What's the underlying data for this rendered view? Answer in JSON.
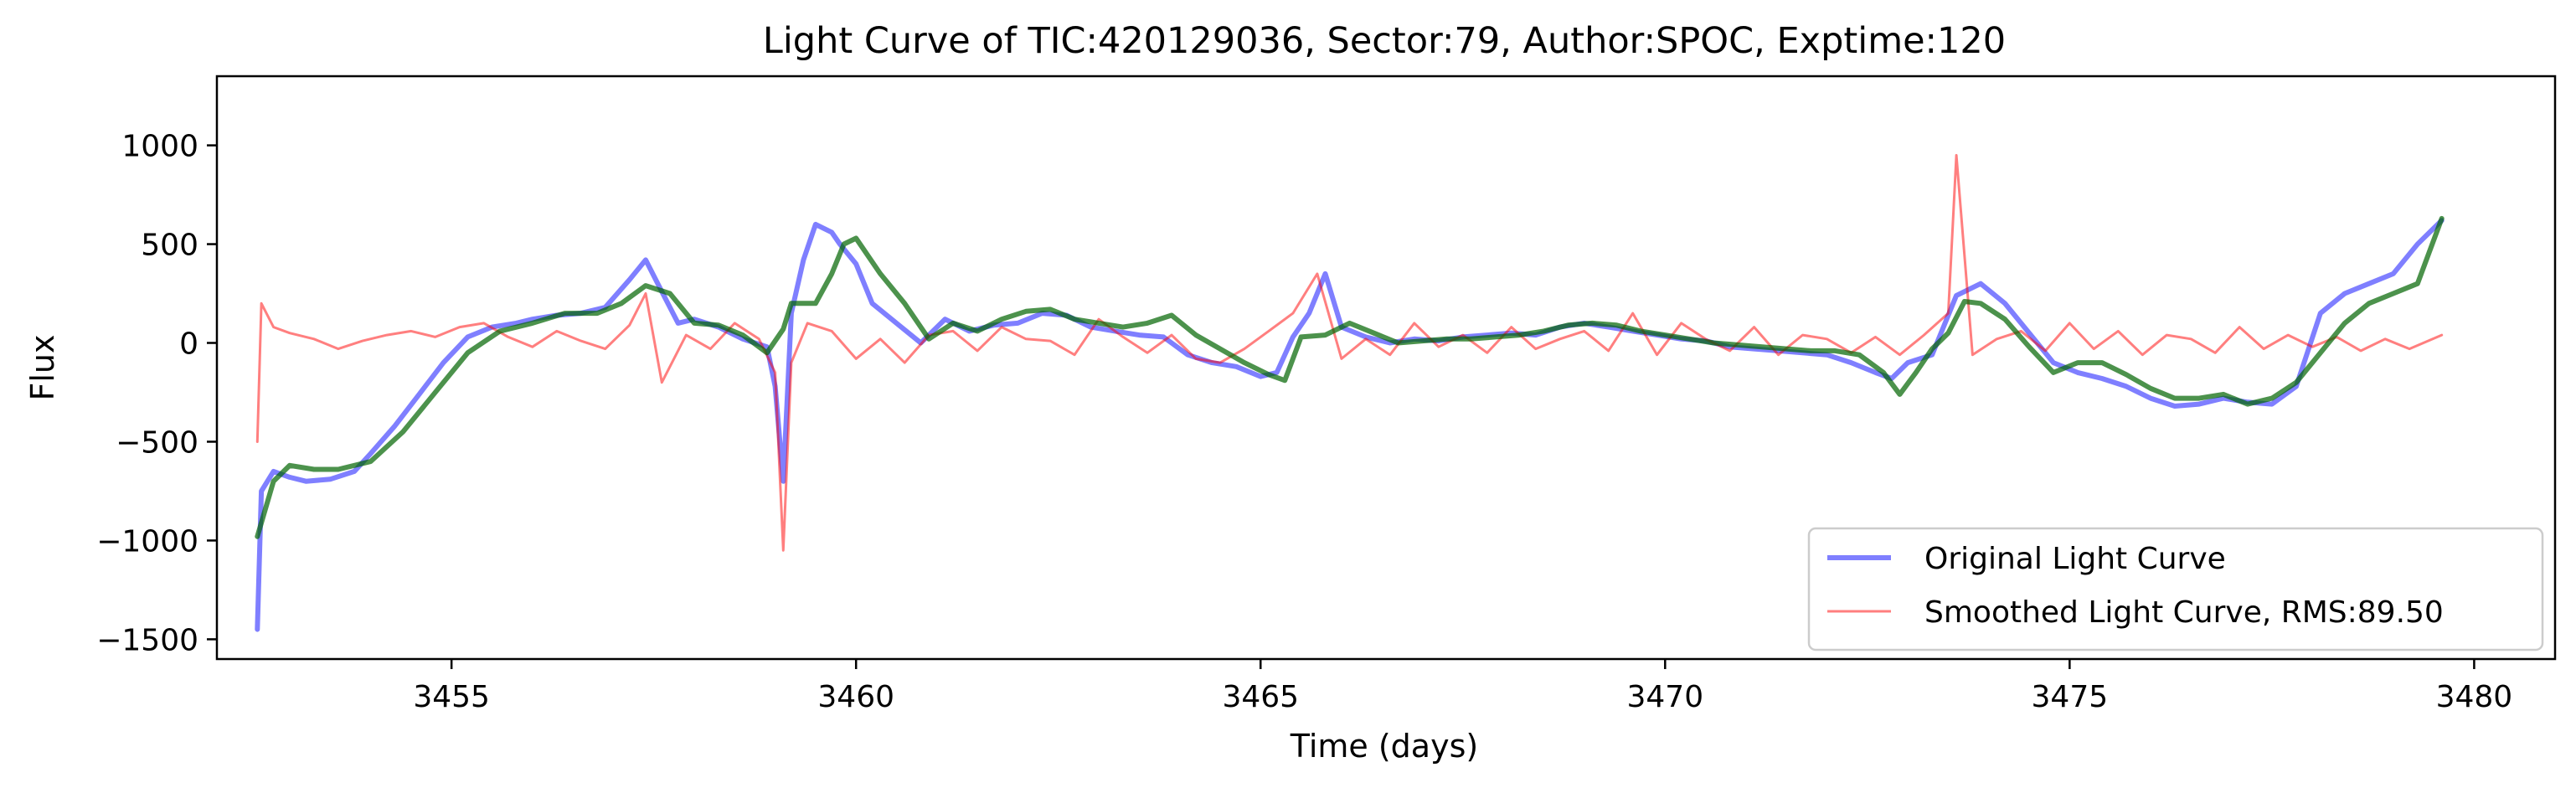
{
  "chart_data": {
    "type": "line",
    "title": "Light Curve of TIC:420129036, Sector:79, Author:SPOC, Exptime:120",
    "xlabel": "Time (days)",
    "ylabel": "Flux",
    "xlim": [
      3452.1,
      3481.0
    ],
    "ylim": [
      -1600,
      1350
    ],
    "xticks": [
      3455,
      3460,
      3465,
      3470,
      3475,
      3480
    ],
    "yticks": [
      1000,
      500,
      0,
      -500,
      -1000,
      -1500
    ],
    "xtick_labels": [
      "3455",
      "3460",
      "3465",
      "3470",
      "3475",
      "3480"
    ],
    "ytick_labels": [
      "1000",
      "500",
      "0",
      "−500",
      "−1000",
      "−1500"
    ],
    "grid": false,
    "legend_position": "lower-right",
    "series": [
      {
        "name": "Original Light Curve",
        "color": "#0000ff",
        "opacity": 0.5,
        "x": [
          3452.6,
          3452.65,
          3452.8,
          3453.0,
          3453.2,
          3453.5,
          3453.8,
          3454.0,
          3454.3,
          3454.6,
          3454.9,
          3455.2,
          3455.5,
          3455.8,
          3456.0,
          3456.3,
          3456.6,
          3456.9,
          3457.2,
          3457.4,
          3457.6,
          3457.8,
          3458.0,
          3458.3,
          3458.6,
          3458.9,
          3459.0,
          3459.1,
          3459.2,
          3459.35,
          3459.5,
          3459.7,
          3459.8,
          3460.0,
          3460.2,
          3460.5,
          3460.8,
          3461.1,
          3461.4,
          3461.7,
          3462.0,
          3462.3,
          3462.6,
          3462.9,
          3463.2,
          3463.5,
          3463.8,
          3464.1,
          3464.4,
          3464.7,
          3465.0,
          3465.2,
          3465.4,
          3465.6,
          3465.8,
          3466.0,
          3466.3,
          3466.6,
          3466.9,
          3467.2,
          3467.5,
          3467.8,
          3468.1,
          3468.4,
          3468.7,
          3469.0,
          3469.3,
          3469.6,
          3469.9,
          3470.2,
          3470.5,
          3470.8,
          3471.1,
          3471.4,
          3471.7,
          3472.0,
          3472.3,
          3472.6,
          3472.8,
          3473.0,
          3473.3,
          3473.6,
          3473.9,
          3474.2,
          3474.5,
          3474.8,
          3475.1,
          3475.4,
          3475.7,
          3476.0,
          3476.3,
          3476.6,
          3476.9,
          3477.2,
          3477.5,
          3477.8,
          3478.1,
          3478.4,
          3478.7,
          3479.0,
          3479.3,
          3479.6
        ],
        "y": [
          -1450,
          -750,
          -650,
          -680,
          -700,
          -690,
          -650,
          -560,
          -420,
          -260,
          -100,
          30,
          80,
          100,
          120,
          140,
          150,
          180,
          320,
          420,
          260,
          100,
          120,
          80,
          20,
          -20,
          -220,
          -700,
          150,
          420,
          600,
          560,
          500,
          400,
          200,
          100,
          0,
          120,
          60,
          90,
          100,
          150,
          140,
          80,
          60,
          40,
          30,
          -60,
          -100,
          -120,
          -170,
          -150,
          30,
          150,
          350,
          80,
          30,
          0,
          20,
          10,
          30,
          40,
          50,
          40,
          80,
          100,
          80,
          60,
          40,
          20,
          10,
          -20,
          -30,
          -40,
          -50,
          -60,
          -100,
          -150,
          -180,
          -100,
          -60,
          240,
          300,
          200,
          50,
          -100,
          -150,
          -180,
          -220,
          -280,
          -320,
          -310,
          -280,
          -300,
          -310,
          -220,
          150,
          250,
          300,
          350,
          500,
          620
        ]
      },
      {
        "name": "Smoothed Light Curve, RMS:89.50",
        "color": "#ff0000",
        "opacity": 0.5,
        "x": [
          3452.6,
          3452.65,
          3452.8,
          3453.0,
          3453.3,
          3453.6,
          3453.9,
          3454.2,
          3454.5,
          3454.8,
          3455.1,
          3455.4,
          3455.7,
          3456.0,
          3456.3,
          3456.6,
          3456.9,
          3457.2,
          3457.4,
          3457.6,
          3457.9,
          3458.2,
          3458.5,
          3458.8,
          3459.0,
          3459.1,
          3459.2,
          3459.4,
          3459.7,
          3460.0,
          3460.3,
          3460.6,
          3460.9,
          3461.2,
          3461.5,
          3461.8,
          3462.1,
          3462.4,
          3462.7,
          3463.0,
          3463.3,
          3463.6,
          3463.9,
          3464.2,
          3464.5,
          3464.8,
          3465.1,
          3465.4,
          3465.7,
          3466.0,
          3466.3,
          3466.6,
          3466.9,
          3467.2,
          3467.5,
          3467.8,
          3468.1,
          3468.4,
          3468.7,
          3469.0,
          3469.3,
          3469.6,
          3469.9,
          3470.2,
          3470.5,
          3470.8,
          3471.1,
          3471.4,
          3471.7,
          3472.0,
          3472.3,
          3472.6,
          3472.9,
          3473.2,
          3473.5,
          3473.6,
          3473.8,
          3474.1,
          3474.4,
          3474.7,
          3475.0,
          3475.3,
          3475.6,
          3475.9,
          3476.2,
          3476.5,
          3476.8,
          3477.1,
          3477.4,
          3477.7,
          3478.0,
          3478.3,
          3478.6,
          3478.9,
          3479.2,
          3479.6
        ],
        "y": [
          -500,
          200,
          80,
          50,
          20,
          -30,
          10,
          40,
          60,
          30,
          80,
          100,
          30,
          -20,
          60,
          10,
          -30,
          90,
          250,
          -200,
          40,
          -30,
          100,
          20,
          -150,
          -1050,
          -100,
          100,
          60,
          -80,
          20,
          -100,
          40,
          60,
          -40,
          80,
          20,
          10,
          -60,
          120,
          30,
          -50,
          40,
          -80,
          -100,
          -30,
          60,
          150,
          350,
          -80,
          20,
          -60,
          100,
          -20,
          40,
          -50,
          80,
          -30,
          20,
          60,
          -40,
          150,
          -60,
          100,
          20,
          -40,
          80,
          -60,
          40,
          20,
          -50,
          30,
          -60,
          40,
          150,
          950,
          -60,
          20,
          60,
          -40,
          100,
          -30,
          60,
          -60,
          40,
          20,
          -50,
          80,
          -30,
          40,
          -20,
          30,
          -40,
          20,
          -30,
          40
        ]
      },
      {
        "color": "#006400",
        "opacity": 0.7,
        "x": [
          3452.6,
          3452.8,
          3453.0,
          3453.3,
          3453.6,
          3454.0,
          3454.4,
          3454.8,
          3455.2,
          3455.6,
          3456.0,
          3456.4,
          3456.8,
          3457.1,
          3457.4,
          3457.7,
          3458.0,
          3458.3,
          3458.6,
          3458.9,
          3459.1,
          3459.2,
          3459.3,
          3459.5,
          3459.7,
          3459.85,
          3460.0,
          3460.3,
          3460.6,
          3460.9,
          3461.2,
          3461.5,
          3461.8,
          3462.1,
          3462.4,
          3462.7,
          3463.0,
          3463.3,
          3463.6,
          3463.9,
          3464.2,
          3464.5,
          3464.8,
          3465.1,
          3465.3,
          3465.5,
          3465.8,
          3466.1,
          3466.4,
          3466.7,
          3467.0,
          3467.3,
          3467.6,
          3467.9,
          3468.2,
          3468.5,
          3468.8,
          3469.1,
          3469.4,
          3469.7,
          3470.0,
          3470.3,
          3470.6,
          3470.9,
          3471.2,
          3471.5,
          3471.8,
          3472.1,
          3472.4,
          3472.7,
          3472.9,
          3473.1,
          3473.3,
          3473.5,
          3473.7,
          3473.9,
          3474.2,
          3474.5,
          3474.8,
          3475.1,
          3475.4,
          3475.7,
          3476.0,
          3476.3,
          3476.6,
          3476.9,
          3477.2,
          3477.5,
          3477.8,
          3478.1,
          3478.4,
          3478.7,
          3479.0,
          3479.3,
          3479.6
        ],
        "y": [
          -980,
          -700,
          -620,
          -640,
          -640,
          -600,
          -450,
          -250,
          -50,
          60,
          100,
          150,
          150,
          200,
          290,
          250,
          100,
          90,
          40,
          -50,
          70,
          200,
          200,
          200,
          350,
          500,
          530,
          350,
          200,
          20,
          100,
          60,
          120,
          160,
          170,
          120,
          100,
          80,
          100,
          140,
          40,
          -30,
          -100,
          -160,
          -190,
          30,
          40,
          100,
          50,
          0,
          10,
          20,
          20,
          30,
          40,
          60,
          90,
          100,
          90,
          60,
          40,
          20,
          0,
          -10,
          -20,
          -30,
          -40,
          -40,
          -60,
          -150,
          -260,
          -150,
          -30,
          50,
          210,
          200,
          120,
          -20,
          -150,
          -100,
          -100,
          -160,
          -230,
          -280,
          -280,
          -260,
          -310,
          -280,
          -200,
          -50,
          100,
          200,
          250,
          300,
          630
        ]
      }
    ],
    "legend": [
      {
        "label": "Original Light Curve",
        "color": "#0000ff",
        "opacity": 0.5,
        "width": 6
      },
      {
        "label": "Smoothed Light Curve, RMS:89.50",
        "color": "#ff0000",
        "opacity": 0.5,
        "width": 3
      }
    ]
  }
}
